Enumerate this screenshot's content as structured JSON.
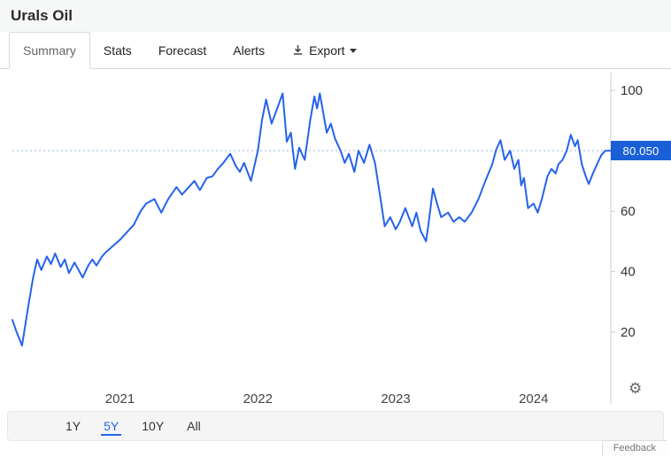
{
  "header": {
    "title": "Urals Oil"
  },
  "tabs": {
    "items": [
      {
        "label": "Summary",
        "active": true
      },
      {
        "label": "Stats",
        "active": false
      },
      {
        "label": "Forecast",
        "active": false
      },
      {
        "label": "Alerts",
        "active": false
      },
      {
        "label": "Export",
        "active": false,
        "has_download_icon": true,
        "has_caret": true
      }
    ]
  },
  "chart_data": {
    "type": "line",
    "title": "Urals Oil",
    "current_value": 80.05,
    "current_value_label": "80.050",
    "x_ticks": [
      "2021",
      "2022",
      "2023",
      "2024"
    ],
    "y_ticks": [
      20,
      40,
      60,
      100
    ],
    "x_range": [
      2020.22,
      2024.56
    ],
    "y_range": [
      0,
      105
    ],
    "grid": "off",
    "legend": "none",
    "reference_line": "dotted horizontal line at current value",
    "line_color": "#2563eb",
    "badge_color": "#1a5fd6",
    "dotted_line_color": "#97b7de",
    "axis_color": "#cccccc",
    "series": [
      {
        "name": "Urals Oil",
        "points": [
          [
            2020.22,
            24
          ],
          [
            2020.25,
            20
          ],
          [
            2020.29,
            15.5
          ],
          [
            2020.33,
            27
          ],
          [
            2020.37,
            38
          ],
          [
            2020.4,
            44
          ],
          [
            2020.43,
            40.5
          ],
          [
            2020.47,
            45
          ],
          [
            2020.5,
            42.5
          ],
          [
            2020.53,
            46
          ],
          [
            2020.57,
            41.5
          ],
          [
            2020.6,
            44
          ],
          [
            2020.63,
            39.5
          ],
          [
            2020.67,
            43
          ],
          [
            2020.7,
            40.5
          ],
          [
            2020.73,
            38
          ],
          [
            2020.77,
            42
          ],
          [
            2020.8,
            44
          ],
          [
            2020.83,
            42
          ],
          [
            2020.87,
            45
          ],
          [
            2020.9,
            46.5
          ],
          [
            2020.95,
            48.5
          ],
          [
            2021.0,
            50.5
          ],
          [
            2021.05,
            53
          ],
          [
            2021.1,
            55.5
          ],
          [
            2021.15,
            60
          ],
          [
            2021.19,
            62.5
          ],
          [
            2021.25,
            64
          ],
          [
            2021.3,
            59.5
          ],
          [
            2021.35,
            64
          ],
          [
            2021.41,
            68
          ],
          [
            2021.45,
            65.5
          ],
          [
            2021.5,
            68
          ],
          [
            2021.54,
            70
          ],
          [
            2021.58,
            67
          ],
          [
            2021.63,
            71
          ],
          [
            2021.67,
            71.5
          ],
          [
            2021.71,
            74
          ],
          [
            2021.75,
            76
          ],
          [
            2021.8,
            79
          ],
          [
            2021.84,
            75
          ],
          [
            2021.87,
            73
          ],
          [
            2021.9,
            76
          ],
          [
            2021.95,
            70
          ],
          [
            2022.0,
            80
          ],
          [
            2022.03,
            90
          ],
          [
            2022.06,
            97
          ],
          [
            2022.1,
            89
          ],
          [
            2022.14,
            94
          ],
          [
            2022.18,
            99
          ],
          [
            2022.21,
            83
          ],
          [
            2022.24,
            86
          ],
          [
            2022.27,
            74
          ],
          [
            2022.3,
            81
          ],
          [
            2022.34,
            77
          ],
          [
            2022.38,
            90
          ],
          [
            2022.41,
            98
          ],
          [
            2022.43,
            94
          ],
          [
            2022.45,
            99
          ],
          [
            2022.5,
            86
          ],
          [
            2022.53,
            89
          ],
          [
            2022.56,
            84
          ],
          [
            2022.6,
            80
          ],
          [
            2022.63,
            76
          ],
          [
            2022.66,
            79
          ],
          [
            2022.7,
            73
          ],
          [
            2022.73,
            80
          ],
          [
            2022.77,
            76
          ],
          [
            2022.81,
            82
          ],
          [
            2022.85,
            76
          ],
          [
            2022.89,
            64
          ],
          [
            2022.92,
            55
          ],
          [
            2022.96,
            58
          ],
          [
            2023.0,
            54
          ],
          [
            2023.03,
            56.5
          ],
          [
            2023.07,
            61
          ],
          [
            2023.12,
            55
          ],
          [
            2023.15,
            59.5
          ],
          [
            2023.18,
            53.5
          ],
          [
            2023.22,
            50
          ],
          [
            2023.24,
            56.5
          ],
          [
            2023.27,
            67.5
          ],
          [
            2023.3,
            62.5
          ],
          [
            2023.33,
            58
          ],
          [
            2023.38,
            59.5
          ],
          [
            2023.42,
            56.5
          ],
          [
            2023.46,
            58
          ],
          [
            2023.5,
            56.5
          ],
          [
            2023.55,
            59.5
          ],
          [
            2023.6,
            64
          ],
          [
            2023.65,
            70
          ],
          [
            2023.7,
            75.5
          ],
          [
            2023.73,
            80.5
          ],
          [
            2023.76,
            83.5
          ],
          [
            2023.79,
            77
          ],
          [
            2023.83,
            80
          ],
          [
            2023.86,
            74
          ],
          [
            2023.89,
            77
          ],
          [
            2023.91,
            68.5
          ],
          [
            2023.93,
            71
          ],
          [
            2023.96,
            61
          ],
          [
            2024.0,
            62.5
          ],
          [
            2024.03,
            59.5
          ],
          [
            2024.06,
            64
          ],
          [
            2024.1,
            71.5
          ],
          [
            2024.13,
            74
          ],
          [
            2024.16,
            72.5
          ],
          [
            2024.18,
            75.5
          ],
          [
            2024.21,
            77
          ],
          [
            2024.24,
            80
          ],
          [
            2024.27,
            85.3
          ],
          [
            2024.3,
            81.5
          ],
          [
            2024.32,
            83.5
          ],
          [
            2024.35,
            75.5
          ],
          [
            2024.38,
            71.3
          ],
          [
            2024.4,
            69
          ],
          [
            2024.43,
            72.5
          ],
          [
            2024.46,
            75.5
          ],
          [
            2024.49,
            78.5
          ],
          [
            2024.52,
            80
          ],
          [
            2024.56,
            80.05
          ]
        ]
      }
    ]
  },
  "range_selector": {
    "active_color": "#2563eb",
    "options": [
      {
        "label": "1Y",
        "active": false
      },
      {
        "label": "5Y",
        "active": true
      },
      {
        "label": "10Y",
        "active": false
      },
      {
        "label": "All",
        "active": false
      }
    ]
  },
  "icons": {
    "gear": "⚙",
    "export_download": "download-arrow-into-tray",
    "export_caret": "triangle-down"
  },
  "footer": {
    "feedback_label": "Feedback"
  }
}
